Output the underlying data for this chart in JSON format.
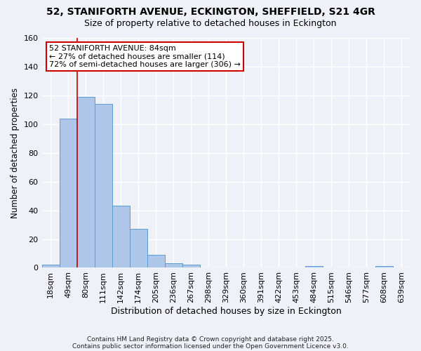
{
  "title": "52, STANIFORTH AVENUE, ECKINGTON, SHEFFIELD, S21 4GR",
  "subtitle": "Size of property relative to detached houses in Eckington",
  "xlabel": "Distribution of detached houses by size in Eckington",
  "ylabel": "Number of detached properties",
  "bin_labels": [
    "18sqm",
    "49sqm",
    "80sqm",
    "111sqm",
    "142sqm",
    "174sqm",
    "205sqm",
    "236sqm",
    "267sqm",
    "298sqm",
    "329sqm",
    "360sqm",
    "391sqm",
    "422sqm",
    "453sqm",
    "484sqm",
    "515sqm",
    "546sqm",
    "577sqm",
    "608sqm",
    "639sqm"
  ],
  "bar_values": [
    2,
    104,
    119,
    114,
    43,
    27,
    9,
    3,
    2,
    0,
    0,
    0,
    0,
    0,
    0,
    1,
    0,
    0,
    0,
    1,
    0
  ],
  "bar_color": "#aec6e8",
  "bar_edge_color": "#5b9bd5",
  "vline_x": 2,
  "vline_color": "#cc0000",
  "ylim": [
    0,
    160
  ],
  "yticks": [
    0,
    20,
    40,
    60,
    80,
    100,
    120,
    140,
    160
  ],
  "annotation_text": "52 STANIFORTH AVENUE: 84sqm\n← 27% of detached houses are smaller (114)\n72% of semi-detached houses are larger (306) →",
  "annotation_box_color": "#ffffff",
  "annotation_box_edge_color": "#cc0000",
  "footer_line1": "Contains HM Land Registry data © Crown copyright and database right 2025.",
  "footer_line2": "Contains public sector information licensed under the Open Government Licence v3.0.",
  "background_color": "#eef2f8",
  "grid_color": "#ffffff",
  "title_fontsize": 10,
  "subtitle_fontsize": 9,
  "ylabel_fontsize": 8.5,
  "xlabel_fontsize": 9,
  "tick_fontsize": 8,
  "annotation_fontsize": 8,
  "footer_fontsize": 6.5
}
